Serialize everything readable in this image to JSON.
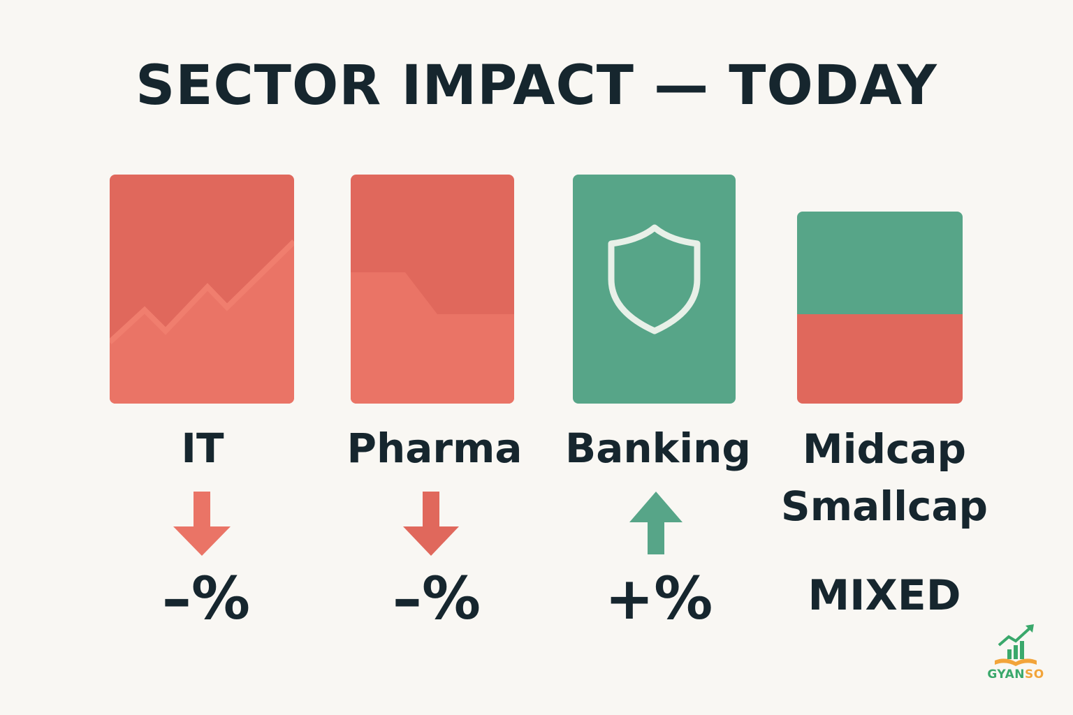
{
  "title": "SECTOR IMPACT — TODAY",
  "colors": {
    "down": "#e0685c",
    "down_light": "#ea7466",
    "up": "#57a588",
    "text": "#16262e",
    "background": "#f9f7f3"
  },
  "sectors": [
    {
      "name": "IT",
      "direction": "down",
      "change": "–%",
      "icon": "line-chart-icon"
    },
    {
      "name": "Pharma",
      "direction": "down",
      "change": "–%",
      "icon": "step-down-chart-icon"
    },
    {
      "name": "Banking",
      "direction": "up",
      "change": "+%",
      "icon": "shield-icon"
    },
    {
      "name_line1": "Midcap",
      "name_line2": "Smallcap",
      "direction": "mixed",
      "change": "MIXED",
      "icon": "split-block-icon"
    }
  ],
  "logo": {
    "text_a": "GYAN",
    "text_b": "SO",
    "icon": "growth-book-logo-icon"
  }
}
